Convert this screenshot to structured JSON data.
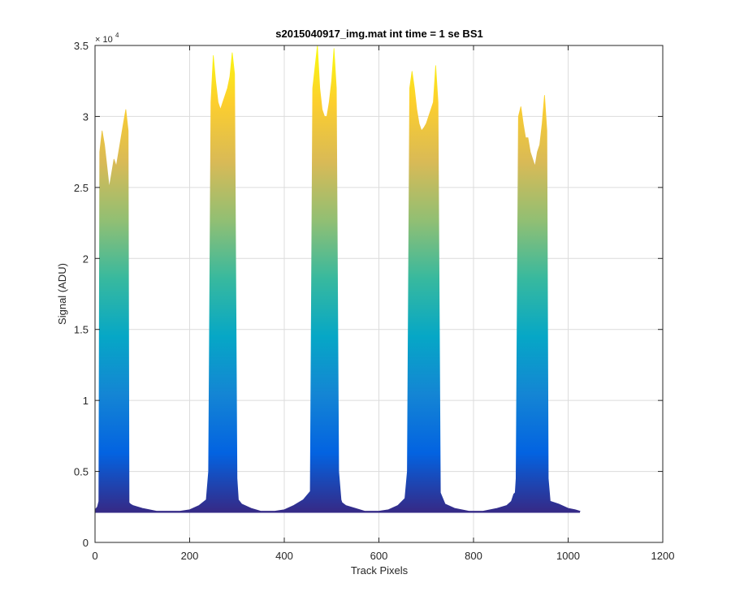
{
  "chart_data": {
    "type": "area",
    "title": "s2015040917_img.mat int time = 1 se   BS1",
    "xlabel": "Track Pixels",
    "ylabel": "Signal (ADU)",
    "xlim": [
      0,
      1200
    ],
    "ylim": [
      0,
      35000
    ],
    "x_ticks": [
      0,
      200,
      400,
      600,
      800,
      1000,
      1200
    ],
    "x_tick_labels": [
      "0",
      "200",
      "400",
      "600",
      "800",
      "1000",
      "1200"
    ],
    "y_ticks": [
      0,
      5000,
      10000,
      15000,
      20000,
      25000,
      30000,
      35000
    ],
    "y_tick_labels": [
      "0",
      "0.5",
      "1",
      "1.5",
      "2",
      "2.5",
      "3",
      "3.5"
    ],
    "y_exponent_label": "× 10",
    "y_exponent_power": "4",
    "grid": true,
    "colormap": [
      "#352a87",
      "#0363e1",
      "#1485d4",
      "#06a7c6",
      "#38b99e",
      "#92bf73",
      "#d9ba56",
      "#fcce2e",
      "#f9fb0e"
    ],
    "x": [
      0,
      5,
      8,
      10,
      15,
      20,
      25,
      30,
      35,
      40,
      45,
      50,
      55,
      60,
      65,
      70,
      72,
      75,
      80,
      100,
      130,
      150,
      180,
      200,
      220,
      235,
      240,
      245,
      250,
      255,
      260,
      265,
      270,
      275,
      280,
      285,
      290,
      295,
      300,
      303,
      310,
      330,
      350,
      380,
      400,
      420,
      440,
      455,
      460,
      465,
      470,
      475,
      480,
      485,
      490,
      495,
      500,
      505,
      510,
      515,
      520,
      522,
      530,
      550,
      570,
      600,
      620,
      640,
      655,
      660,
      665,
      670,
      675,
      680,
      685,
      690,
      695,
      700,
      705,
      710,
      715,
      720,
      725,
      730,
      740,
      760,
      790,
      820,
      850,
      870,
      880,
      885,
      888,
      890,
      895,
      900,
      905,
      910,
      915,
      920,
      925,
      930,
      935,
      940,
      945,
      950,
      955,
      958,
      962,
      980,
      1000,
      1015,
      1025
    ],
    "values": [
      2300,
      2500,
      2900,
      27500,
      29000,
      28000,
      26500,
      25000,
      26000,
      27000,
      26500,
      27500,
      28500,
      29500,
      30500,
      29000,
      2800,
      2700,
      2600,
      2400,
      2200,
      2200,
      2200,
      2300,
      2600,
      3000,
      5000,
      31000,
      34300,
      32500,
      31000,
      30500,
      31000,
      31500,
      32000,
      32800,
      34500,
      33000,
      4500,
      3000,
      2700,
      2400,
      2200,
      2200,
      2300,
      2600,
      3000,
      3600,
      32000,
      33500,
      35000,
      32000,
      30500,
      30000,
      30000,
      31000,
      32500,
      34800,
      32000,
      5000,
      3000,
      2800,
      2600,
      2400,
      2200,
      2200,
      2300,
      2600,
      3100,
      5000,
      32000,
      33200,
      32000,
      30500,
      29500,
      29000,
      29200,
      29500,
      30000,
      30500,
      31000,
      33600,
      31000,
      3500,
      2700,
      2400,
      2200,
      2200,
      2400,
      2600,
      2900,
      3400,
      3500,
      4500,
      30000,
      30700,
      29500,
      28500,
      28500,
      27500,
      27000,
      26500,
      27500,
      28000,
      29500,
      31500,
      29000,
      4500,
      2900,
      2700,
      2400,
      2300,
      2200
    ],
    "floor": 2200
  }
}
